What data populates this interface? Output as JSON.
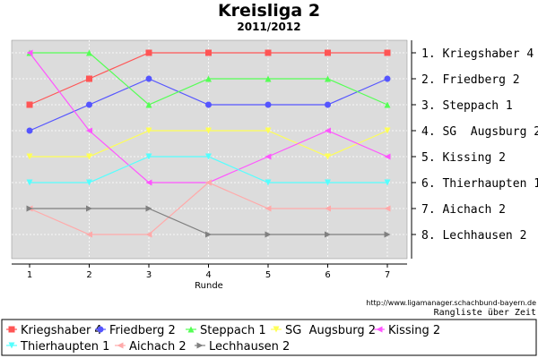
{
  "chart_data": {
    "type": "line",
    "title": "Kreisliga 2",
    "subtitle": "2011/2012",
    "xlabel": "Runde",
    "x": [
      1,
      2,
      3,
      4,
      5,
      6,
      7
    ],
    "ylim": [
      1,
      8
    ],
    "y_inverted": true,
    "grid": true,
    "legend_position": "bottom",
    "rank_labels": [
      "1. Kriegshaber 4",
      "2. Friedberg 2",
      "3. Steppach 1",
      "4. SG  Augsburg 2",
      "5. Kissing 2",
      "6. Thierhaupten 1",
      "7. Aichach 2",
      "8. Lechhausen 2"
    ],
    "source_url": "http://www.ligamanager.schachbund-bayern.de",
    "caption": "Rangliste über Zeit",
    "series": [
      {
        "name": "Kriegshaber 4",
        "color": "#ff5555",
        "marker": "square",
        "values": [
          3,
          2,
          1,
          1,
          1,
          1,
          1
        ]
      },
      {
        "name": "Friedberg 2",
        "color": "#5555ff",
        "marker": "circle",
        "values": [
          4,
          3,
          2,
          3,
          3,
          3,
          2
        ]
      },
      {
        "name": "Steppach 1",
        "color": "#55ff55",
        "marker": "triangle-up",
        "values": [
          1,
          1,
          3,
          2,
          2,
          2,
          3
        ]
      },
      {
        "name": "SG  Augsburg 2",
        "color": "#ffff55",
        "marker": "triangle-down",
        "values": [
          5,
          5,
          4,
          4,
          4,
          5,
          4
        ]
      },
      {
        "name": "Kissing 2",
        "color": "#ff55ff",
        "marker": "triangle-left",
        "values": [
          1,
          4,
          6,
          6,
          5,
          4,
          5
        ]
      },
      {
        "name": "Thierhaupten 1",
        "color": "#55ffff",
        "marker": "triangle-down",
        "values": [
          6,
          6,
          5,
          5,
          6,
          6,
          6
        ]
      },
      {
        "name": "Aichach 2",
        "color": "#ffaaaa",
        "marker": "triangle-left",
        "values": [
          7,
          8,
          8,
          6,
          7,
          7,
          7
        ]
      },
      {
        "name": "Lechhausen 2",
        "color": "#808080",
        "marker": "triangle-right",
        "values": [
          7,
          7,
          7,
          8,
          8,
          8,
          8
        ]
      }
    ]
  }
}
